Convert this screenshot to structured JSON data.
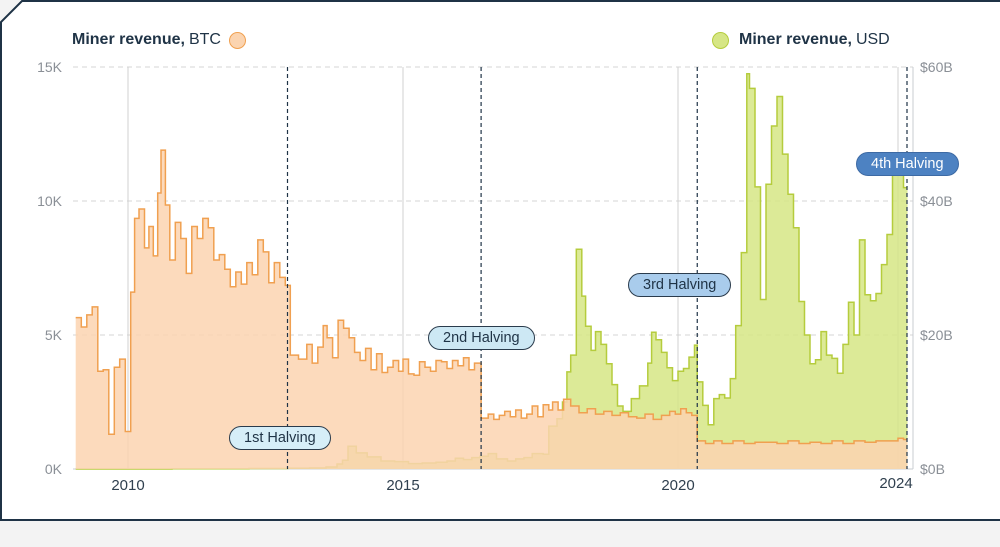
{
  "legend": {
    "btc_bold": "Miner revenue,",
    "btc_unit": "BTC",
    "usd_bold": "Miner revenue,",
    "usd_unit": "USD"
  },
  "halvings": [
    "1st Halving",
    "2nd Halving",
    "3rd Halving",
    "4th Halving"
  ],
  "colors": {
    "btc_fill": "#fbd4b0",
    "btc_line": "#f0a050",
    "usd_fill": "#d6e685",
    "usd_line": "#b5cc3d",
    "frame": "#1f3346"
  },
  "chart_data": {
    "type": "area",
    "x_range": [
      2009.0,
      2024.3
    ],
    "x_ticks": [
      "2010",
      "2015",
      "2020",
      "2024"
    ],
    "x_tick_values": [
      2010,
      2015,
      2020,
      2024
    ],
    "y_left": {
      "ticks": [
        "0K",
        "5K",
        "10K",
        "15K"
      ],
      "tick_values": [
        0,
        5000,
        10000,
        15000
      ],
      "range": [
        0,
        15000
      ]
    },
    "y_right": {
      "ticks": [
        "$0B",
        "$20B",
        "$40B",
        "$60B"
      ],
      "tick_values": [
        0,
        20,
        40,
        60
      ],
      "range": [
        0,
        60
      ]
    },
    "halving_dates": [
      2012.9,
      2016.42,
      2020.35,
      2024.3
    ],
    "series": [
      {
        "name": "Miner revenue, BTC",
        "axis": "left",
        "points": [
          [
            2009.05,
            5650
          ],
          [
            2009.15,
            5300
          ],
          [
            2009.25,
            5750
          ],
          [
            2009.35,
            6050
          ],
          [
            2009.45,
            3650
          ],
          [
            2009.55,
            3700
          ],
          [
            2009.65,
            1300
          ],
          [
            2009.75,
            3800
          ],
          [
            2009.85,
            4100
          ],
          [
            2009.95,
            1400
          ],
          [
            2010.05,
            6600
          ],
          [
            2010.12,
            9350
          ],
          [
            2010.2,
            9700
          ],
          [
            2010.3,
            8250
          ],
          [
            2010.38,
            9050
          ],
          [
            2010.46,
            7950
          ],
          [
            2010.54,
            10300
          ],
          [
            2010.6,
            11900
          ],
          [
            2010.68,
            9850
          ],
          [
            2010.76,
            7800
          ],
          [
            2010.86,
            9200
          ],
          [
            2010.96,
            8600
          ],
          [
            2011.06,
            7300
          ],
          [
            2011.16,
            9050
          ],
          [
            2011.26,
            8600
          ],
          [
            2011.36,
            9350
          ],
          [
            2011.46,
            9000
          ],
          [
            2011.56,
            7800
          ],
          [
            2011.66,
            8000
          ],
          [
            2011.76,
            7450
          ],
          [
            2011.86,
            6800
          ],
          [
            2011.96,
            7350
          ],
          [
            2012.06,
            6900
          ],
          [
            2012.16,
            7700
          ],
          [
            2012.26,
            7250
          ],
          [
            2012.36,
            8550
          ],
          [
            2012.46,
            8100
          ],
          [
            2012.56,
            6950
          ],
          [
            2012.66,
            7700
          ],
          [
            2012.76,
            7150
          ],
          [
            2012.86,
            6850
          ],
          [
            2012.95,
            4250
          ],
          [
            2013.1,
            4100
          ],
          [
            2013.25,
            4650
          ],
          [
            2013.35,
            3950
          ],
          [
            2013.45,
            4550
          ],
          [
            2013.55,
            5350
          ],
          [
            2013.62,
            4900
          ],
          [
            2013.72,
            4150
          ],
          [
            2013.82,
            5550
          ],
          [
            2013.92,
            5250
          ],
          [
            2014.02,
            4900
          ],
          [
            2014.12,
            4350
          ],
          [
            2014.22,
            4050
          ],
          [
            2014.32,
            4500
          ],
          [
            2014.42,
            3700
          ],
          [
            2014.52,
            4300
          ],
          [
            2014.62,
            3600
          ],
          [
            2014.72,
            3800
          ],
          [
            2014.82,
            4050
          ],
          [
            2014.92,
            3650
          ],
          [
            2015.0,
            4100
          ],
          [
            2015.1,
            3550
          ],
          [
            2015.2,
            3500
          ],
          [
            2015.3,
            4000
          ],
          [
            2015.4,
            3800
          ],
          [
            2015.5,
            3650
          ],
          [
            2015.6,
            4050
          ],
          [
            2015.7,
            4000
          ],
          [
            2015.8,
            3750
          ],
          [
            2015.9,
            4050
          ],
          [
            2016.0,
            3850
          ],
          [
            2016.1,
            4150
          ],
          [
            2016.2,
            3700
          ],
          [
            2016.3,
            3950
          ],
          [
            2016.42,
            1900
          ],
          [
            2016.55,
            2050
          ],
          [
            2016.65,
            1850
          ],
          [
            2016.75,
            2000
          ],
          [
            2016.85,
            2150
          ],
          [
            2016.95,
            1950
          ],
          [
            2017.05,
            2200
          ],
          [
            2017.15,
            1900
          ],
          [
            2017.25,
            2050
          ],
          [
            2017.35,
            2350
          ],
          [
            2017.45,
            1950
          ],
          [
            2017.55,
            2400
          ],
          [
            2017.65,
            2200
          ],
          [
            2017.72,
            2500
          ],
          [
            2017.82,
            2200
          ],
          [
            2017.92,
            2600
          ],
          [
            2018.05,
            2350
          ],
          [
            2018.2,
            2100
          ],
          [
            2018.35,
            2250
          ],
          [
            2018.5,
            2050
          ],
          [
            2018.65,
            2150
          ],
          [
            2018.8,
            2000
          ],
          [
            2018.95,
            2100
          ],
          [
            2019.1,
            1950
          ],
          [
            2019.25,
            1900
          ],
          [
            2019.4,
            2050
          ],
          [
            2019.55,
            1850
          ],
          [
            2019.7,
            2000
          ],
          [
            2019.85,
            2150
          ],
          [
            2019.95,
            2050
          ],
          [
            2020.05,
            2250
          ],
          [
            2020.15,
            2100
          ],
          [
            2020.25,
            2000
          ],
          [
            2020.35,
            1050
          ],
          [
            2020.5,
            950
          ],
          [
            2020.65,
            1050
          ],
          [
            2020.8,
            950
          ],
          [
            2021.0,
            1050
          ],
          [
            2021.2,
            950
          ],
          [
            2021.4,
            1000
          ],
          [
            2021.6,
            1000
          ],
          [
            2021.8,
            950
          ],
          [
            2022.0,
            1050
          ],
          [
            2022.2,
            950
          ],
          [
            2022.4,
            1000
          ],
          [
            2022.6,
            950
          ],
          [
            2022.8,
            1050
          ],
          [
            2023.0,
            950
          ],
          [
            2023.2,
            1050
          ],
          [
            2023.4,
            1000
          ],
          [
            2023.6,
            1050
          ],
          [
            2023.8,
            1050
          ],
          [
            2024.0,
            1150
          ],
          [
            2024.1,
            1100
          ]
        ]
      },
      {
        "name": "Miner revenue, USD",
        "axis": "right",
        "points": [
          [
            2009.05,
            0
          ],
          [
            2010.8,
            0.03
          ],
          [
            2011.5,
            0.05
          ],
          [
            2012.2,
            0.08
          ],
          [
            2012.9,
            0.1
          ],
          [
            2013.3,
            0.15
          ],
          [
            2013.6,
            0.3
          ],
          [
            2013.8,
            0.75
          ],
          [
            2013.9,
            1.3
          ],
          [
            2014.0,
            3.4
          ],
          [
            2014.15,
            2.4
          ],
          [
            2014.35,
            1.8
          ],
          [
            2014.6,
            1.2
          ],
          [
            2014.85,
            1.1
          ],
          [
            2015.1,
            0.8
          ],
          [
            2015.35,
            0.9
          ],
          [
            2015.6,
            1.0
          ],
          [
            2015.8,
            1.2
          ],
          [
            2015.95,
            1.6
          ],
          [
            2016.1,
            1.4
          ],
          [
            2016.25,
            1.7
          ],
          [
            2016.4,
            1.9
          ],
          [
            2016.55,
            2.3
          ],
          [
            2016.7,
            1.5
          ],
          [
            2016.9,
            1.2
          ],
          [
            2017.05,
            1.5
          ],
          [
            2017.2,
            1.7
          ],
          [
            2017.35,
            2.3
          ],
          [
            2017.55,
            2.2
          ],
          [
            2017.65,
            6.4
          ],
          [
            2017.8,
            7.5
          ],
          [
            2017.9,
            10.0
          ],
          [
            2017.98,
            14.5
          ],
          [
            2018.05,
            17.0
          ],
          [
            2018.15,
            32.8
          ],
          [
            2018.25,
            25.8
          ],
          [
            2018.32,
            21.3
          ],
          [
            2018.42,
            17.7
          ],
          [
            2018.5,
            20.5
          ],
          [
            2018.6,
            18.6
          ],
          [
            2018.7,
            15.7
          ],
          [
            2018.8,
            12.6
          ],
          [
            2018.9,
            9.4
          ],
          [
            2019.0,
            8.6
          ],
          [
            2019.15,
            10.5
          ],
          [
            2019.3,
            12.4
          ],
          [
            2019.45,
            15.8
          ],
          [
            2019.52,
            20.4
          ],
          [
            2019.6,
            19.3
          ],
          [
            2019.7,
            17.4
          ],
          [
            2019.8,
            15.1
          ],
          [
            2019.9,
            13.2
          ],
          [
            2020.0,
            14.6
          ],
          [
            2020.1,
            15.0
          ],
          [
            2020.2,
            16.7
          ],
          [
            2020.3,
            18.5
          ],
          [
            2020.35,
            13.0
          ],
          [
            2020.45,
            9.5
          ],
          [
            2020.55,
            6.6
          ],
          [
            2020.65,
            10.5
          ],
          [
            2020.75,
            11.1
          ],
          [
            2020.85,
            10.6
          ],
          [
            2020.95,
            13.5
          ],
          [
            2021.05,
            21.4
          ],
          [
            2021.15,
            32.3
          ],
          [
            2021.25,
            59.0
          ],
          [
            2021.3,
            56.8
          ],
          [
            2021.4,
            42.1
          ],
          [
            2021.5,
            25.3
          ],
          [
            2021.6,
            42.5
          ],
          [
            2021.7,
            51.2
          ],
          [
            2021.8,
            55.6
          ],
          [
            2021.9,
            47.0
          ],
          [
            2022.0,
            41.0
          ],
          [
            2022.1,
            36.0
          ],
          [
            2022.2,
            25.0
          ],
          [
            2022.3,
            20.0
          ],
          [
            2022.4,
            15.7
          ],
          [
            2022.5,
            16.3
          ],
          [
            2022.6,
            20.5
          ],
          [
            2022.7,
            17.0
          ],
          [
            2022.8,
            16.5
          ],
          [
            2022.9,
            14.3
          ],
          [
            2023.0,
            18.6
          ],
          [
            2023.1,
            24.9
          ],
          [
            2023.2,
            20.0
          ],
          [
            2023.3,
            34.2
          ],
          [
            2023.4,
            26.0
          ],
          [
            2023.5,
            25.1
          ],
          [
            2023.6,
            26.2
          ],
          [
            2023.7,
            30.5
          ],
          [
            2023.8,
            35.0
          ],
          [
            2023.9,
            44.0
          ],
          [
            2024.0,
            45.7
          ],
          [
            2024.1,
            42.0
          ]
        ]
      }
    ]
  }
}
